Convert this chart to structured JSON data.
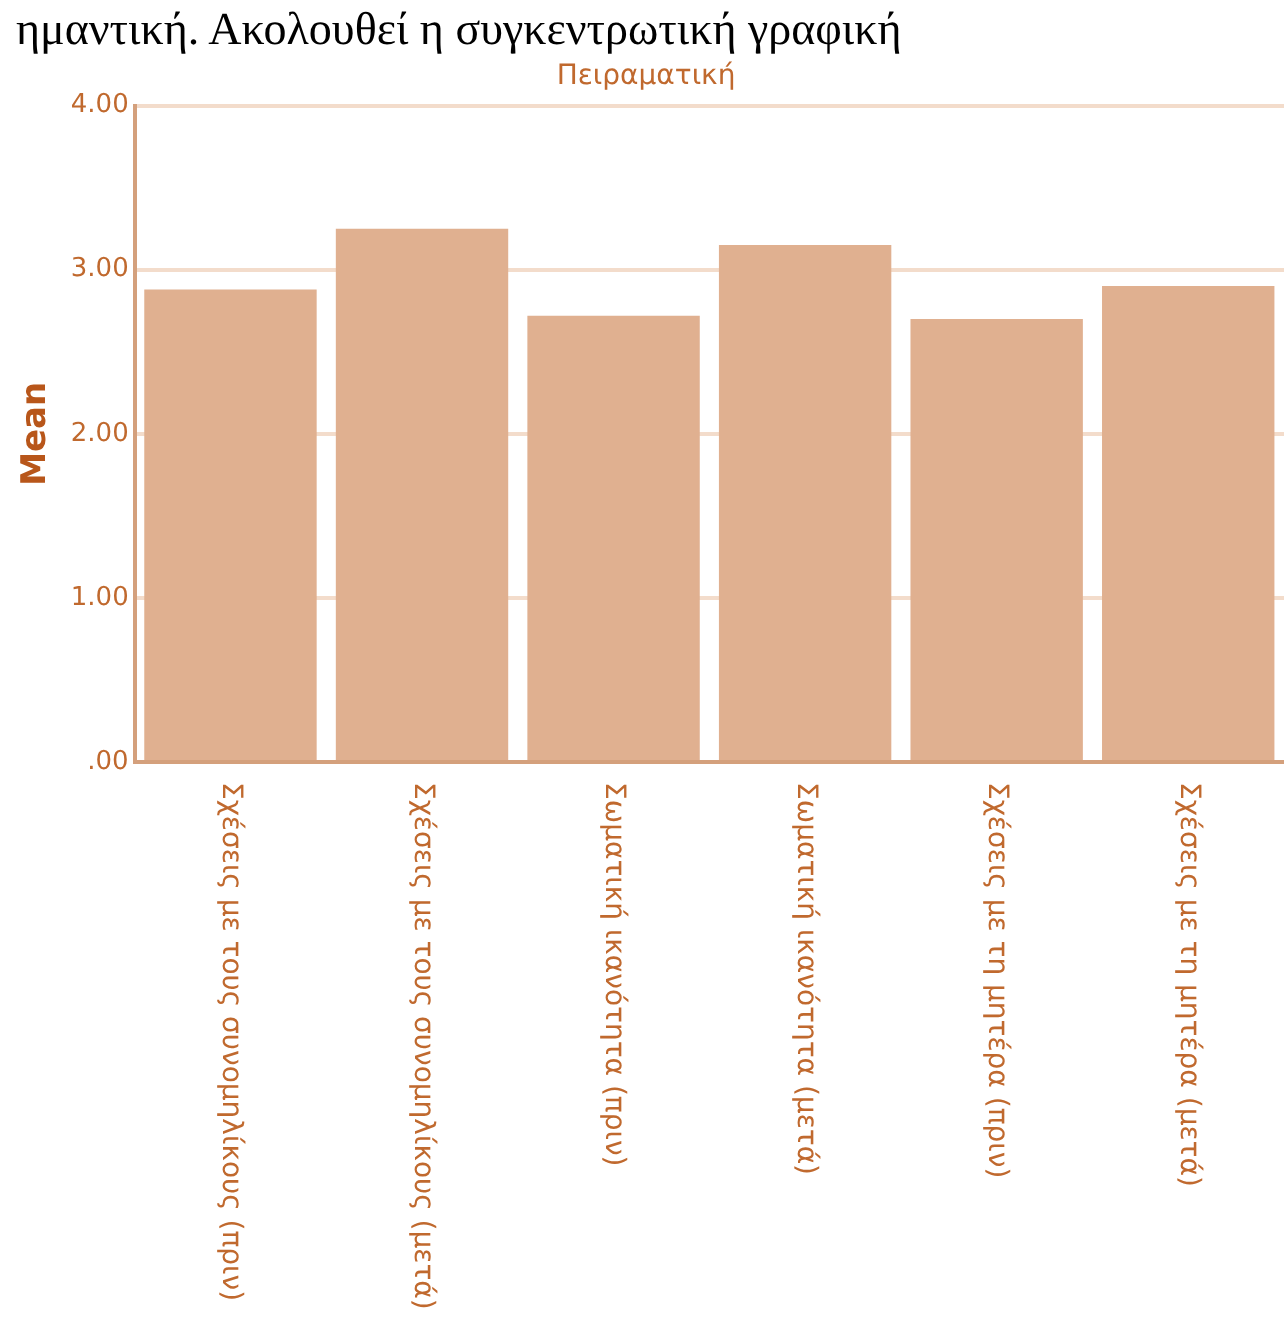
{
  "chart_data": {
    "type": "bar",
    "title": "Πειραματική",
    "ylabel": "Mean",
    "annotations": [
      "ημαντική. Ακολουθεί η συγκεντρωτική γραφική"
    ],
    "categories": [
      "Σχέσεις με τους συνομηλίκους (πριν)",
      "Σχέσεις με τους συνομηλίκους (μετά)",
      "Σωματική ικανότητα (πριν)",
      "Σωματική ικανότητα (μετά)",
      "Σχέσεις με τη μητέρα (πριν)",
      "Σχέσεις με τη μητέρα (μετά)"
    ],
    "values": [
      2.88,
      3.25,
      2.72,
      3.15,
      2.7,
      2.9
    ],
    "color": "#e0b090",
    "ylim": [
      0,
      4
    ],
    "yticks": [
      {
        "value": 0,
        "label": ".00"
      },
      {
        "value": 1,
        "label": "1.00"
      },
      {
        "value": 2,
        "label": "2.00"
      },
      {
        "value": 3,
        "label": "3.00"
      },
      {
        "value": 4,
        "label": "4.00"
      }
    ],
    "grid": "y",
    "legend": false
  }
}
